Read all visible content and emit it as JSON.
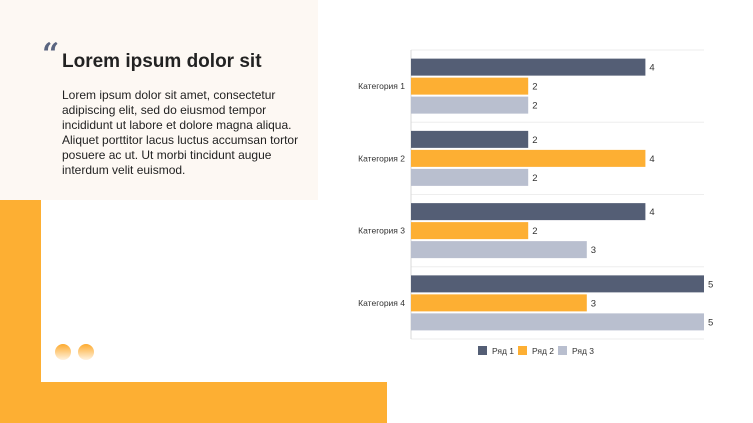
{
  "quote": {
    "mark": "“",
    "title": "Lorem ipsum dolor sit",
    "body": "Lorem ipsum dolor sit amet, consectetur adipiscing elit, sed do eiusmod tempor incididunt ut labore et dolore magna aliqua. Aliquet porttitor lacus luctus accumsan tortor posuere ac ut. Ut morbi tincidunt augue interdum velit euismod."
  },
  "chart_data": {
    "type": "bar",
    "orientation": "horizontal",
    "categories": [
      "Категория 1",
      "Категория 2",
      "Категория 3",
      "Категория 4"
    ],
    "series": [
      {
        "name": "Ряд 1",
        "color": "#545e75",
        "values": [
          4,
          2,
          4,
          5
        ]
      },
      {
        "name": "Ряд 2",
        "color": "#fdaf33",
        "values": [
          2,
          4,
          2,
          3
        ]
      },
      {
        "name": "Ряд 3",
        "color": "#b9bfcf",
        "values": [
          2,
          2,
          3,
          5
        ]
      }
    ],
    "xlim": [
      0,
      5
    ],
    "legend": "bottom",
    "grid": true
  }
}
